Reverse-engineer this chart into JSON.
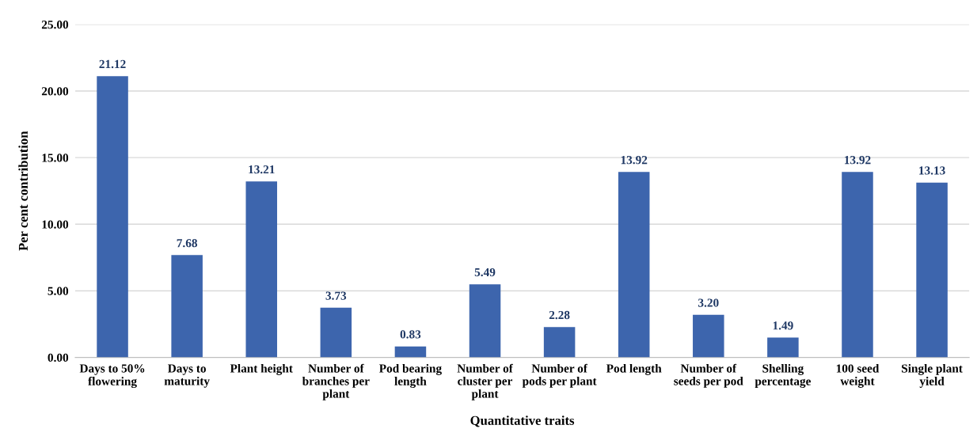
{
  "chart_data": {
    "type": "bar",
    "xlabel": "Quantitative traits",
    "ylabel": "Per cent contribution",
    "categories": [
      "Days to 50%\nflowering",
      "Days to\nmaturity",
      "Plant height",
      "Number of\nbranches per\nplant",
      "Pod bearing\nlength",
      "Number of\ncluster per\nplant",
      "Number of\npods per plant",
      "Pod length",
      "Number of\nseeds per pod",
      "Shelling\npercentage",
      "100 seed\nweight",
      "Single plant\nyield"
    ],
    "values": [
      21.12,
      7.68,
      13.21,
      3.73,
      0.83,
      5.49,
      2.28,
      13.92,
      3.2,
      1.49,
      13.92,
      13.13
    ],
    "value_labels": [
      "21.12",
      "7.68",
      "13.21",
      "3.73",
      "0.83",
      "5.49",
      "2.28",
      "13.92",
      "3.20",
      "1.49",
      "13.92",
      "13.13"
    ],
    "color": "#3d65ad",
    "ylim": [
      0,
      25
    ],
    "yticks": [
      {
        "value": 0,
        "label": "0.00"
      },
      {
        "value": 5,
        "label": "5.00"
      },
      {
        "value": 10,
        "label": "10.00"
      },
      {
        "value": 15,
        "label": "15.00"
      },
      {
        "value": 20,
        "label": "20.00"
      },
      {
        "value": 25,
        "label": "25.00"
      }
    ],
    "grid": "y"
  }
}
